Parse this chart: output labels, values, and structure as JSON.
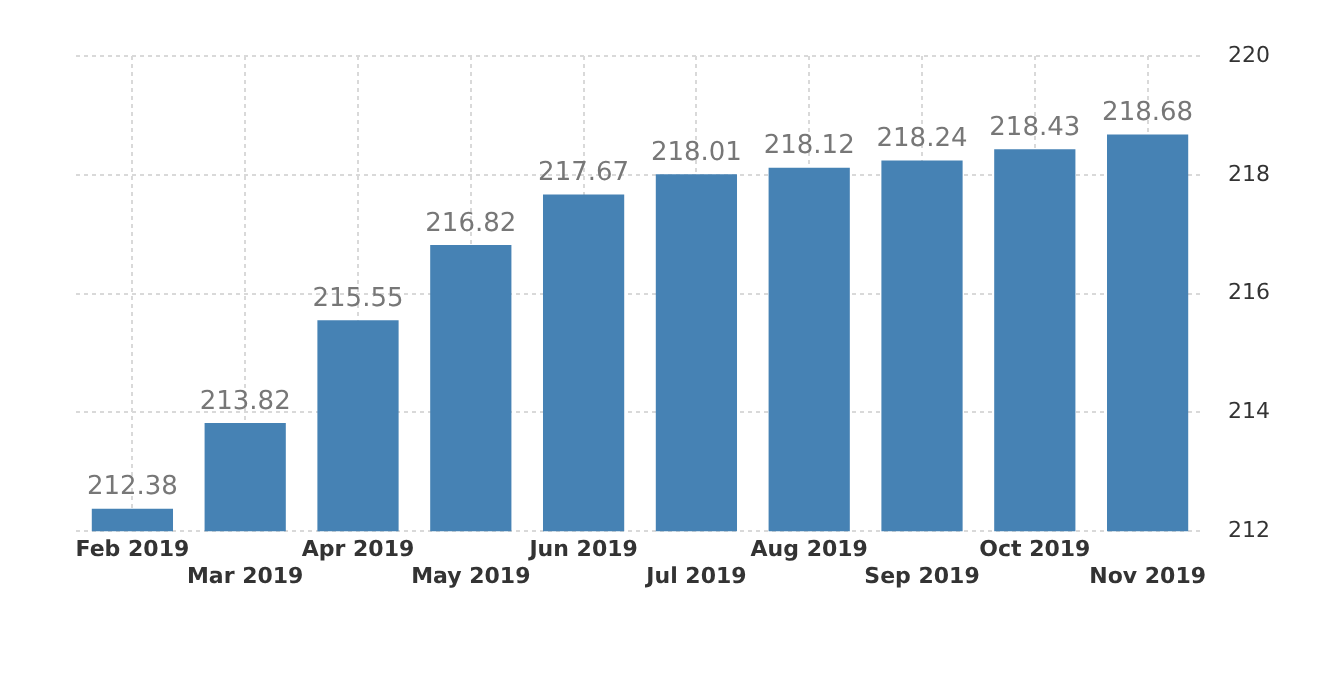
{
  "chart_data": {
    "type": "bar",
    "categories": [
      "Feb 2019",
      "Mar 2019",
      "Apr 2019",
      "May 2019",
      "Jun 2019",
      "Jul 2019",
      "Aug 2019",
      "Sep 2019",
      "Oct 2019",
      "Nov 2019"
    ],
    "values": [
      212.38,
      213.82,
      215.55,
      216.82,
      217.67,
      218.01,
      218.12,
      218.24,
      218.43,
      218.68
    ],
    "color": "#4682b4",
    "ylim": [
      212,
      220
    ],
    "yticks": [
      212,
      214,
      216,
      218,
      220
    ],
    "grid": true,
    "data_labels": true
  }
}
